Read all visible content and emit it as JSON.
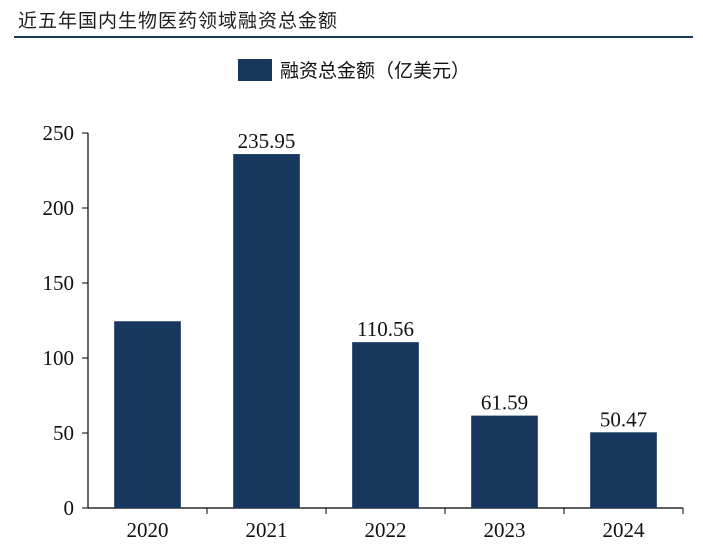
{
  "page": {
    "title": "近五年国内生物医药领域融资总金额"
  },
  "chart_data": {
    "type": "bar",
    "title": "近五年国内生物医药领域融资总金额",
    "xlabel": "",
    "ylabel": "",
    "ylim": [
      0,
      250
    ],
    "yticks": [
      0,
      50,
      100,
      150,
      200,
      250
    ],
    "categories": [
      "2020",
      "2021",
      "2022",
      "2023",
      "2024"
    ],
    "series": [
      {
        "name": "融资总金额（亿美元）",
        "values": [
          124.5,
          235.95,
          110.56,
          61.59,
          50.47
        ],
        "labels": [
          "",
          "235.95",
          "110.56",
          "61.59",
          "50.47"
        ]
      }
    ],
    "color": "#17375e",
    "legend_position": "top-center",
    "grid": false
  }
}
